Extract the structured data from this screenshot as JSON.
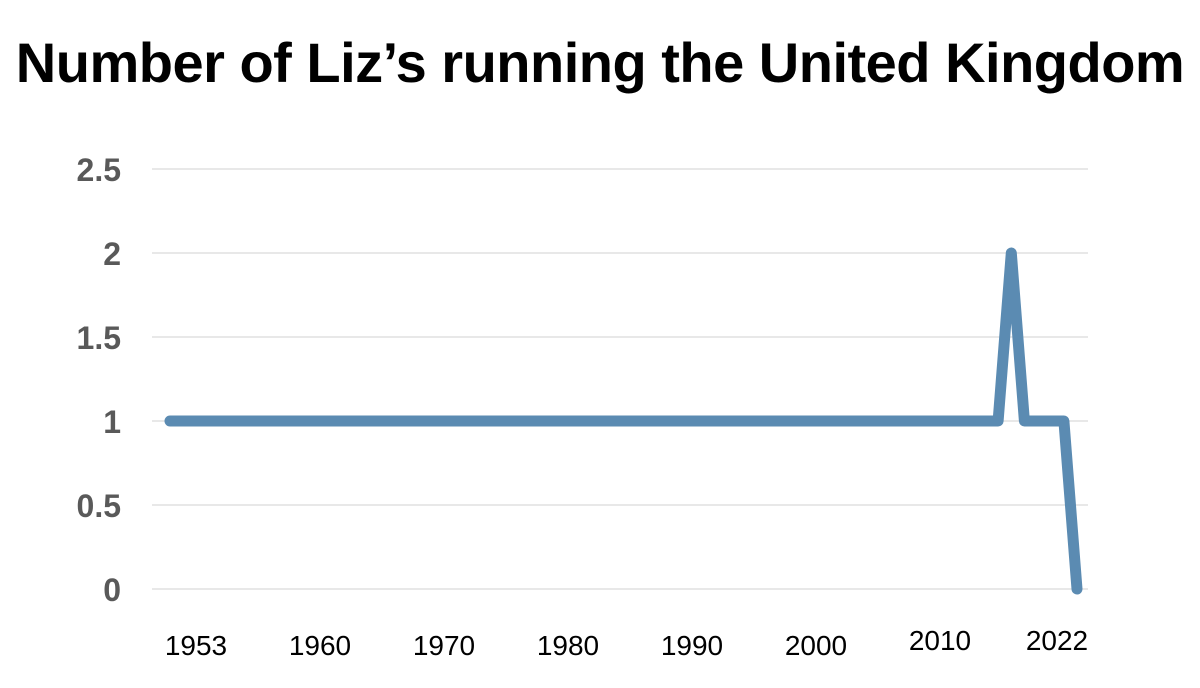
{
  "chart_data": {
    "type": "line",
    "title": "Number of Liz’s running the United Kingdom",
    "xlabel": "",
    "ylabel": "",
    "ylim": [
      0,
      2.5
    ],
    "y_ticks": [
      "0",
      "0.5",
      "1",
      "1.5",
      "2",
      "2.5"
    ],
    "x_ticks": [
      "1953",
      "1960",
      "1970",
      "1980",
      "1990",
      "2000",
      "2010",
      "2022"
    ],
    "grid": true,
    "legend": "none",
    "color": "#5b8bb2",
    "series": [
      {
        "x": [
          "1953",
          "2016",
          "2017",
          "2018",
          "2020",
          "2021",
          "2022"
        ],
        "y": [
          1,
          1,
          2,
          1,
          1,
          1,
          0
        ]
      }
    ]
  }
}
